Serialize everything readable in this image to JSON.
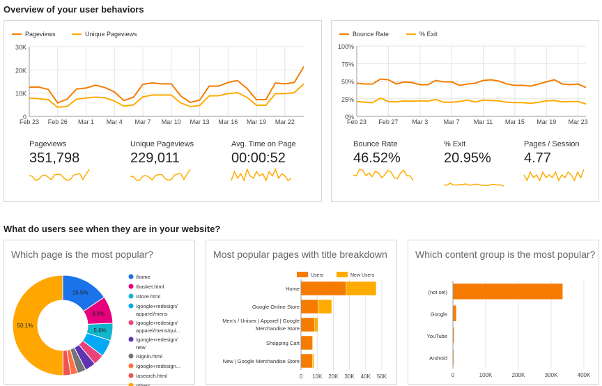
{
  "section1_title": "Overview of your user behaviors",
  "section2_title": "What do users see when they are in your website?",
  "colors": {
    "primary": "#f57c00",
    "secondary": "#ffab00"
  },
  "traffic_chart": {
    "type": "line",
    "series": [
      {
        "name": "Pageviews",
        "values": [
          12.6,
          12.6,
          11.6,
          5.8,
          7.4,
          11.8,
          12.2,
          13.4,
          12.4,
          10.5,
          6.8,
          8.2,
          13.8,
          14.4,
          14.0,
          14.0,
          8.8,
          6.0,
          7.0,
          13.0,
          13.0,
          14.6,
          15.4,
          12.0,
          7.2,
          7.2,
          14.4,
          14.0,
          14.6,
          21.4
        ]
      },
      {
        "name": "Unique Pageviews",
        "values": [
          7.8,
          7.6,
          7.2,
          3.9,
          4.3,
          7.4,
          7.9,
          8.3,
          8.0,
          6.6,
          4.4,
          4.9,
          8.4,
          9.2,
          9.2,
          9.2,
          5.8,
          4.2,
          4.7,
          8.8,
          8.9,
          9.8,
          10.2,
          8.2,
          4.8,
          4.8,
          9.8,
          9.8,
          10.2,
          14.0
        ]
      }
    ],
    "unit": "thousands",
    "ylim": [
      0,
      30
    ],
    "y_ticks": [
      "0",
      "10K",
      "20K",
      "30K"
    ],
    "x_ticks": [
      "Feb 23",
      "Feb 26",
      "Mar 1",
      "Mar 4",
      "Mar 7",
      "Mar 10",
      "Mar 13",
      "Mar 16",
      "Mar 19",
      "Mar 22"
    ],
    "grid": true,
    "legend": "top-left"
  },
  "rate_chart": {
    "type": "line",
    "series": [
      {
        "name": "Bounce Rate",
        "values": [
          47,
          46,
          46,
          53,
          52,
          46,
          49,
          48,
          45,
          45,
          51,
          49,
          49,
          44,
          46,
          47,
          51,
          52,
          50,
          46,
          44,
          44,
          43,
          46,
          49,
          52,
          46,
          45,
          46,
          41
        ]
      },
      {
        "name": "% Exit",
        "values": [
          21,
          20,
          19.5,
          26,
          21,
          20.5,
          22,
          21.5,
          22,
          21.5,
          24,
          20,
          20,
          21,
          23,
          20.5,
          23,
          22.5,
          22,
          20,
          19.5,
          19.5,
          18.5,
          20,
          22,
          22.5,
          20.5,
          21,
          21,
          17.5
        ]
      }
    ],
    "ylim": [
      0,
      100
    ],
    "y_ticks": [
      "0%",
      "25%",
      "50%",
      "75%",
      "100%"
    ],
    "x_ticks": [
      "Feb 23",
      "Feb 27",
      "Mar 3",
      "Mar 7",
      "Mar 11",
      "Mar 15",
      "Mar 19",
      "Mar 23"
    ],
    "grid": true,
    "legend": "top-left"
  },
  "scorecards": [
    {
      "label": "Pageviews",
      "value": "351,798",
      "spark": [
        12.6,
        11.6,
        5.8,
        7.4,
        12.2,
        13.4,
        10.5,
        6.8,
        13.8,
        14.4,
        14,
        8.8,
        6,
        7,
        13,
        14.6,
        15.4,
        7.2,
        14.4,
        21.4
      ]
    },
    {
      "label": "Unique Pageviews",
      "value": "229,011",
      "spark": [
        7.8,
        7.2,
        3.9,
        4.3,
        7.9,
        8.3,
        6.6,
        4.4,
        8.4,
        9.2,
        9.2,
        5.8,
        4.2,
        4.7,
        8.8,
        9.8,
        10.2,
        4.8,
        9.8,
        14
      ]
    },
    {
      "label": "Avg. Time on Page",
      "value": "00:00:52",
      "spark": [
        50,
        54,
        51,
        53,
        50,
        55,
        52,
        51,
        54,
        52,
        53,
        50,
        54,
        52,
        55,
        51,
        53,
        52,
        50,
        51
      ]
    },
    {
      "label": "Bounce Rate",
      "value": "46.52%",
      "spark": [
        47,
        46,
        53,
        52,
        46,
        49,
        45,
        51,
        49,
        44,
        47,
        52,
        50,
        44,
        43,
        49,
        52,
        46,
        46,
        41
      ]
    },
    {
      "label": "% Exit",
      "value": "20.95%",
      "spark": [
        21,
        20,
        26,
        21,
        20.5,
        22,
        22,
        24,
        20,
        21,
        23,
        22.5,
        20,
        19.5,
        18.5,
        22,
        22.5,
        21,
        21,
        17.5
      ]
    },
    {
      "label": "Pages / Session",
      "value": "4.77",
      "spark": [
        4.8,
        4.6,
        4.9,
        4.7,
        4.8,
        4.6,
        4.9,
        4.7,
        4.8,
        4.7,
        4.9,
        4.6,
        4.8,
        4.7,
        4.9,
        4.8,
        4.6,
        4.9,
        4.7,
        5.0
      ]
    }
  ],
  "pie_card": {
    "title": "Which page is the most popular?",
    "chart_data": {
      "type": "pie",
      "donut": true,
      "slices": [
        {
          "label": "/home",
          "value": 15.5,
          "color": "#1a73e8",
          "show": "15.5%"
        },
        {
          "label": "/basket.html",
          "value": 8.8,
          "color": "#e6007e",
          "show": "8.8%"
        },
        {
          "label": "/store.html",
          "value": 5.6,
          "color": "#12b5cb",
          "show": "5.6%"
        },
        {
          "label": "/google+redesign/ apparel/mens",
          "value": 5.5,
          "color": "#03a9f4"
        },
        {
          "label": "/google+redesign/ apparel/mens/qui...",
          "value": 3.5,
          "color": "#e8437a"
        },
        {
          "label": "/google+redesign/ new",
          "value": 3.5,
          "color": "#5e35b1"
        },
        {
          "label": "/signin.html",
          "value": 2.8,
          "color": "#757575"
        },
        {
          "label": "/google+redesign...",
          "value": 2.2,
          "color": "#ff7043"
        },
        {
          "label": "/asearch.html",
          "value": 2.5,
          "color": "#ef5350"
        },
        {
          "label": "others",
          "value": 50.1,
          "color": "#ffa600",
          "show": "50.1%"
        }
      ]
    }
  },
  "stacked_card": {
    "title": "Most popular pages with title breakdown",
    "chart_data": {
      "type": "bar",
      "orientation": "horizontal",
      "stacked": true,
      "categories": [
        "Home",
        "Google Online Store",
        "Men's / Unisex | Apparel | Google Merchandise Store",
        "Shopping Cart",
        "New | Google Merchandise Store"
      ],
      "series": [
        {
          "name": "Users",
          "values": [
            28000,
            10500,
            8500,
            7000,
            7000
          ]
        },
        {
          "name": "New Users",
          "values": [
            18500,
            8500,
            2000,
            500,
            1000
          ]
        }
      ],
      "xlim": [
        0,
        50000
      ],
      "x_ticks": [
        "0",
        "10K",
        "20K",
        "30K",
        "40K",
        "50K"
      ],
      "legend": "top"
    }
  },
  "group_card": {
    "title": "Which content group is the most popular?",
    "chart_data": {
      "type": "bar",
      "orientation": "horizontal",
      "categories": [
        "(not set)",
        "Google",
        "YouTube",
        "Android"
      ],
      "values": [
        335000,
        10000,
        3000,
        500
      ],
      "xlim": [
        0,
        400000
      ],
      "x_ticks": [
        "0",
        "100K",
        "200K",
        "300K",
        "400K"
      ]
    }
  }
}
